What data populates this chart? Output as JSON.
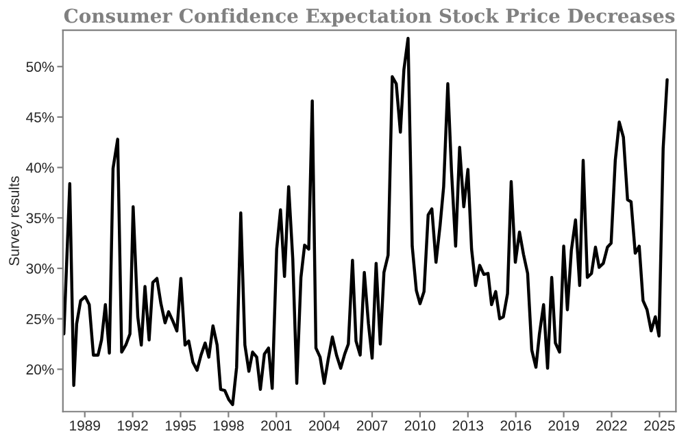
{
  "chart_data": {
    "type": "line",
    "title": "Consumer Confidence Expectation Stock Price Decreases",
    "ylabel": "Survey results",
    "x": [
      1987.69,
      1988.06,
      1988.31,
      1988.49,
      1988.74,
      1989.03,
      1989.28,
      1989.54,
      1989.83,
      1990.05,
      1990.29,
      1990.54,
      1990.77,
      1991.06,
      1991.31,
      1991.57,
      1991.83,
      1992.03,
      1992.32,
      1992.54,
      1992.77,
      1993.03,
      1993.26,
      1993.52,
      1993.77,
      1994.03,
      1994.25,
      1994.51,
      1994.77,
      1995.02,
      1995.28,
      1995.51,
      1995.77,
      1996.03,
      1996.28,
      1996.54,
      1996.77,
      1997.03,
      1997.29,
      1997.51,
      1997.77,
      1998.02,
      1998.26,
      1998.51,
      1998.77,
      1999.03,
      1999.28,
      1999.51,
      1999.77,
      2000.0,
      2000.25,
      2000.51,
      2000.74,
      2001.02,
      2001.26,
      2001.51,
      2001.77,
      2002.03,
      2002.28,
      2002.54,
      2002.77,
      2003.03,
      2003.25,
      2003.48,
      2003.74,
      2004.0,
      2004.25,
      2004.51,
      2004.77,
      2005.03,
      2005.28,
      2005.51,
      2005.77,
      2005.99,
      2006.25,
      2006.51,
      2006.77,
      2007.0,
      2007.25,
      2007.51,
      2007.74,
      2008.0,
      2008.26,
      2008.51,
      2008.77,
      2008.99,
      2009.25,
      2009.51,
      2009.77,
      2010.0,
      2010.25,
      2010.51,
      2010.74,
      2011.0,
      2011.26,
      2011.48,
      2011.74,
      2011.97,
      2012.23,
      2012.48,
      2012.74,
      2013.0,
      2013.23,
      2013.48,
      2013.74,
      2014.0,
      2014.26,
      2014.48,
      2014.74,
      2014.99,
      2015.22,
      2015.48,
      2015.71,
      2015.97,
      2016.23,
      2016.48,
      2016.74,
      2017.0,
      2017.26,
      2017.48,
      2017.74,
      2017.99,
      2018.25,
      2018.48,
      2018.74,
      2019.0,
      2019.23,
      2019.48,
      2019.74,
      2020.0,
      2020.22,
      2020.48,
      2020.74,
      2020.99,
      2021.22,
      2021.48,
      2021.74,
      2021.97,
      2022.23,
      2022.48,
      2022.74,
      2023.0,
      2023.22,
      2023.48,
      2023.73,
      2023.97,
      2024.22,
      2024.48,
      2024.74,
      2024.97,
      2025.23,
      2025.48
    ],
    "series": [
      {
        "color": "#000000",
        "values": [
          23.5,
          38.4,
          18.4,
          24.5,
          26.8,
          27.2,
          26.4,
          21.4,
          21.4,
          22.9,
          26.4,
          21.6,
          39.9,
          42.8,
          21.7,
          22.4,
          23.5,
          36.1,
          25.2,
          22.4,
          28.2,
          22.9,
          28.6,
          29.0,
          26.5,
          24.6,
          25.7,
          24.8,
          23.8,
          29.0,
          22.4,
          22.8,
          20.7,
          19.9,
          21.4,
          22.6,
          21.2,
          24.3,
          22.4,
          18.0,
          17.9,
          17.0,
          16.5,
          20.2,
          35.5,
          22.4,
          19.8,
          21.7,
          21.2,
          18.0,
          21.5,
          22.1,
          18.1,
          31.9,
          35.8,
          29.2,
          38.1,
          30.9,
          18.6,
          29.1,
          32.3,
          31.9,
          46.6,
          22.1,
          21.2,
          18.6,
          21.0,
          23.2,
          21.4,
          20.1,
          21.5,
          22.5,
          30.8,
          22.8,
          21.4,
          29.6,
          24.5,
          21.1,
          30.5,
          22.5,
          29.6,
          31.3,
          49.0,
          48.3,
          43.5,
          49.7,
          52.8,
          32.2,
          27.8,
          26.5,
          27.7,
          35.3,
          35.9,
          30.6,
          34.3,
          38.1,
          48.3,
          39.7,
          32.2,
          42.0,
          36.1,
          39.8,
          31.9,
          28.3,
          30.3,
          29.4,
          29.5,
          26.4,
          27.7,
          25.0,
          25.2,
          27.5,
          38.6,
          30.6,
          33.6,
          31.4,
          29.5,
          21.9,
          20.2,
          23.5,
          26.4,
          20.1,
          29.1,
          22.6,
          21.7,
          32.2,
          25.9,
          31.8,
          34.8,
          28.3,
          40.7,
          29.1,
          29.5,
          32.1,
          30.1,
          30.5,
          32.1,
          32.5,
          40.7,
          44.5,
          43.0,
          36.8,
          36.6,
          31.5,
          32.2,
          26.8,
          25.9,
          23.8,
          25.2,
          23.3,
          41.9,
          48.7
        ]
      }
    ],
    "xlim": [
      1987.63,
      2026.03
    ],
    "ylim": [
      15.8,
      53.6
    ],
    "xticks": [
      1989,
      1992,
      1995,
      1998,
      2001,
      2004,
      2007,
      2010,
      2013,
      2016,
      2019,
      2022,
      2025
    ],
    "yticks": [
      {
        "value": 20,
        "label": "20%"
      },
      {
        "value": 25,
        "label": "25%"
      },
      {
        "value": 30,
        "label": "30%"
      },
      {
        "value": 35,
        "label": "35%"
      },
      {
        "value": 40,
        "label": "40%"
      },
      {
        "value": 45,
        "label": "45%"
      },
      {
        "value": 50,
        "label": "50%"
      }
    ],
    "grid": false,
    "line_style": "solid",
    "marker": "none"
  }
}
